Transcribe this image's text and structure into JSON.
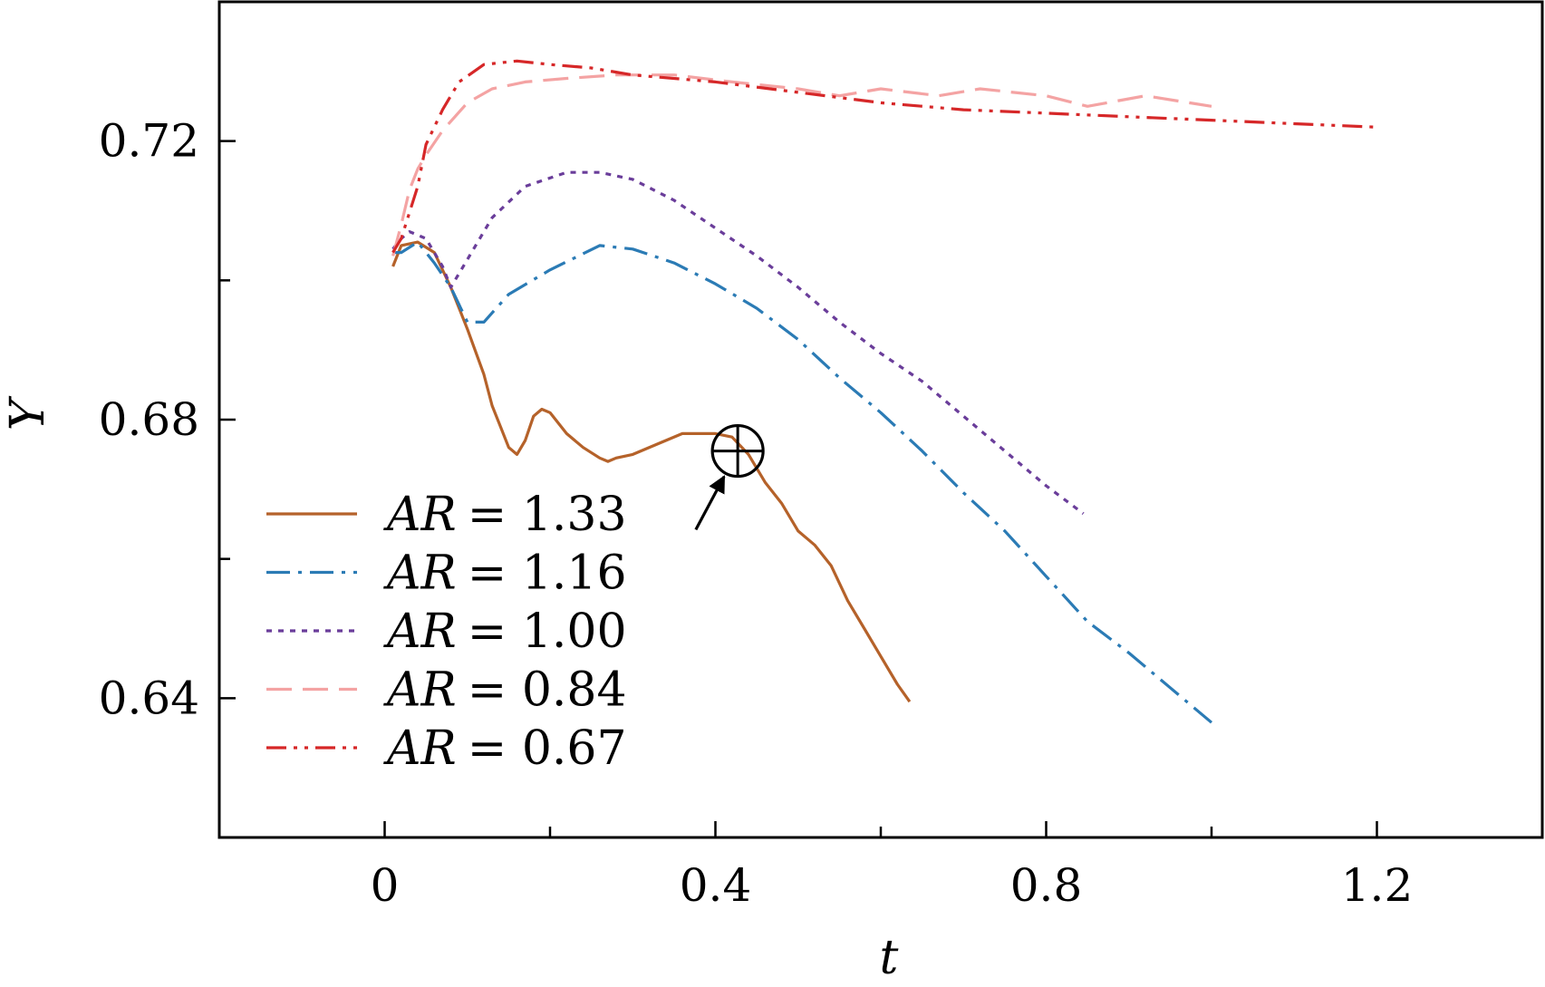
{
  "chart_data": {
    "type": "line",
    "title": "",
    "xlabel": "t",
    "ylabel": "Y",
    "xlim": [
      -0.2,
      1.4
    ],
    "ylim": [
      0.62,
      0.74
    ],
    "xticks": [
      0,
      0.4,
      0.8,
      1.2
    ],
    "xtick_labels": [
      "0",
      "0.4",
      "0.8",
      "1.2"
    ],
    "xminor": [
      0.2,
      0.6,
      1.0
    ],
    "yticks": [
      0.64,
      0.68,
      0.72
    ],
    "ytick_labels": [
      "0.64",
      "0.68",
      "0.72"
    ],
    "yminor": [
      0.66,
      0.7
    ],
    "grid": false,
    "legend": "lower-left",
    "series": [
      {
        "name": "AR = 1.33",
        "ar_prefix": "AR",
        "ar_value": "= 1.33",
        "color": "#b5622a",
        "style": "solid",
        "x": [
          0.01,
          0.02,
          0.04,
          0.06,
          0.08,
          0.1,
          0.12,
          0.13,
          0.14,
          0.15,
          0.16,
          0.17,
          0.18,
          0.19,
          0.2,
          0.22,
          0.24,
          0.26,
          0.27,
          0.28,
          0.3,
          0.33,
          0.36,
          0.38,
          0.4,
          0.42,
          0.44,
          0.46,
          0.48,
          0.5,
          0.52,
          0.54,
          0.56,
          0.58,
          0.6,
          0.62,
          0.635
        ],
        "y": [
          0.702,
          0.705,
          0.7055,
          0.704,
          0.699,
          0.693,
          0.6865,
          0.682,
          0.679,
          0.676,
          0.675,
          0.677,
          0.6805,
          0.6815,
          0.681,
          0.678,
          0.676,
          0.6745,
          0.674,
          0.6745,
          0.675,
          0.6765,
          0.678,
          0.678,
          0.678,
          0.6775,
          0.675,
          0.671,
          0.668,
          0.664,
          0.662,
          0.659,
          0.654,
          0.65,
          0.646,
          0.642,
          0.6395
        ]
      },
      {
        "name": "AR = 1.16",
        "ar_prefix": "AR",
        "ar_value": "= 1.16",
        "color": "#2b7bb5",
        "style": "dashdot",
        "x": [
          0.01,
          0.02,
          0.04,
          0.06,
          0.08,
          0.1,
          0.12,
          0.15,
          0.2,
          0.26,
          0.3,
          0.35,
          0.4,
          0.45,
          0.5,
          0.55,
          0.6,
          0.65,
          0.7,
          0.75,
          0.8,
          0.85,
          0.9,
          0.95,
          1.0
        ],
        "y": [
          0.704,
          0.704,
          0.7055,
          0.7025,
          0.699,
          0.694,
          0.694,
          0.698,
          0.7015,
          0.705,
          0.7045,
          0.7025,
          0.6995,
          0.696,
          0.6915,
          0.686,
          0.681,
          0.6755,
          0.6695,
          0.664,
          0.6575,
          0.651,
          0.6465,
          0.6415,
          0.6365
        ]
      },
      {
        "name": "AR = 1.00",
        "ar_prefix": "AR",
        "ar_value": "= 1.00",
        "color": "#6a3d9a",
        "style": "dotted",
        "x": [
          0.01,
          0.02,
          0.03,
          0.05,
          0.07,
          0.08,
          0.1,
          0.13,
          0.17,
          0.22,
          0.26,
          0.3,
          0.35,
          0.4,
          0.45,
          0.5,
          0.55,
          0.6,
          0.65,
          0.7,
          0.75,
          0.8,
          0.845
        ],
        "y": [
          0.7045,
          0.706,
          0.707,
          0.706,
          0.702,
          0.699,
          0.703,
          0.709,
          0.7135,
          0.7155,
          0.7155,
          0.7145,
          0.7115,
          0.7075,
          0.7035,
          0.699,
          0.694,
          0.6895,
          0.6855,
          0.6805,
          0.6755,
          0.6705,
          0.6665
        ]
      },
      {
        "name": "AR = 0.84",
        "ar_prefix": "AR",
        "ar_value": "= 0.84",
        "color": "#f4a3a3",
        "style": "dashed",
        "x": [
          0.01,
          0.02,
          0.03,
          0.04,
          0.05,
          0.07,
          0.1,
          0.13,
          0.17,
          0.22,
          0.28,
          0.35,
          0.42,
          0.5,
          0.55,
          0.6,
          0.67,
          0.72,
          0.8,
          0.85,
          0.92,
          1.0
        ],
        "y": [
          0.7035,
          0.708,
          0.713,
          0.716,
          0.718,
          0.7215,
          0.7255,
          0.7275,
          0.7285,
          0.729,
          0.7295,
          0.7295,
          0.7285,
          0.7275,
          0.7265,
          0.7275,
          0.7265,
          0.7275,
          0.7265,
          0.725,
          0.7265,
          0.725
        ]
      },
      {
        "name": "AR = 0.67",
        "ar_prefix": "AR",
        "ar_value": "= 0.67",
        "color": "#d62728",
        "style": "dashdotdot",
        "x": [
          0.01,
          0.02,
          0.04,
          0.05,
          0.07,
          0.09,
          0.12,
          0.16,
          0.2,
          0.25,
          0.3,
          0.4,
          0.5,
          0.6,
          0.7,
          0.8,
          0.9,
          1.0,
          1.1,
          1.2
        ],
        "y": [
          0.704,
          0.706,
          0.7135,
          0.7195,
          0.7245,
          0.7285,
          0.731,
          0.7315,
          0.731,
          0.7305,
          0.7295,
          0.7285,
          0.727,
          0.7255,
          0.7245,
          0.724,
          0.7235,
          0.723,
          0.7225,
          0.722
        ]
      }
    ],
    "annotation": {
      "label": "⊕",
      "x": 0.427,
      "y": 0.6755,
      "arrow_from": [
        0.35,
        0.6655
      ]
    }
  }
}
